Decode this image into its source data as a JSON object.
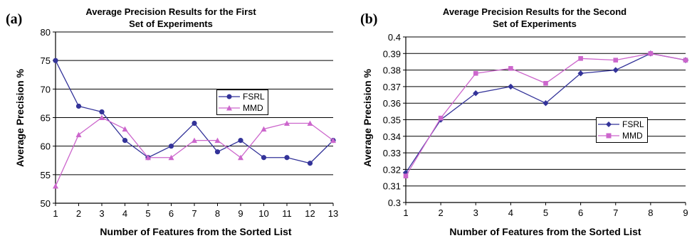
{
  "chart_data": [
    {
      "panel_label": "(a)",
      "type": "line",
      "title_lines": [
        "Average Precision Results for the First",
        "Set of Experiments"
      ],
      "xlabel": "Number of Features from the Sorted List",
      "ylabel": "Average Precision %",
      "x": [
        1,
        2,
        3,
        4,
        5,
        6,
        7,
        8,
        9,
        10,
        11,
        12,
        13
      ],
      "ylim": [
        50,
        80
      ],
      "y_ticks": [
        50,
        55,
        60,
        65,
        70,
        75,
        80
      ],
      "grid": "horizontal",
      "legend_position": "right",
      "series": [
        {
          "name": "FSRL",
          "marker": "circle",
          "color": "#333399",
          "values": [
            75,
            67,
            66,
            61,
            58,
            60,
            64,
            59,
            61,
            58,
            58,
            57,
            61
          ]
        },
        {
          "name": "MMD",
          "marker": "triangle",
          "color": "#cc66cc",
          "values": [
            53,
            62,
            65,
            63,
            58,
            58,
            61,
            61,
            58,
            63,
            64,
            64,
            61
          ]
        }
      ]
    },
    {
      "panel_label": "(b)",
      "type": "line",
      "title_lines": [
        "Average Precision Results for the Second",
        "Set of Experiments"
      ],
      "xlabel": "Number of Features from the Sorted List",
      "ylabel": "Average Precision %",
      "x": [
        1,
        2,
        3,
        4,
        5,
        6,
        7,
        8,
        9
      ],
      "ylim": [
        0.3,
        0.4
      ],
      "y_ticks": [
        "0.3",
        "0.31",
        "0.32",
        "0.33",
        "0.34",
        "0.35",
        "0.36",
        "0.37",
        "0.38",
        "0.39",
        "0.4"
      ],
      "grid": "horizontal",
      "legend_position": "right",
      "series": [
        {
          "name": "FSRL",
          "marker": "diamond",
          "color": "#333399",
          "values": [
            0.318,
            0.35,
            0.366,
            0.37,
            0.36,
            0.378,
            0.38,
            0.39,
            0.386
          ]
        },
        {
          "name": "MMD",
          "marker": "square",
          "color": "#cc66cc",
          "values": [
            0.316,
            0.351,
            0.378,
            0.381,
            0.372,
            0.387,
            0.386,
            0.39,
            0.386
          ]
        }
      ]
    }
  ]
}
